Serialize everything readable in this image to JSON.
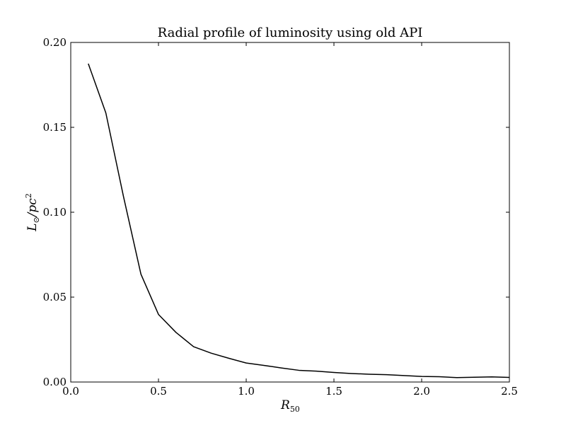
{
  "chart_data": {
    "type": "line",
    "title": "Radial profile of luminosity using old API",
    "xlabel": "R",
    "xlabel_sub": "50",
    "ylabel": "L",
    "ylabel_sub": "⊙",
    "ylabel_rest": "/pc",
    "ylabel_sup": "2",
    "xlim": [
      0.0,
      2.5
    ],
    "ylim": [
      0.0,
      0.2
    ],
    "grid": false,
    "x_ticks": [
      0.0,
      0.5,
      1.0,
      1.5,
      2.0,
      2.5
    ],
    "x_tick_labels": [
      "0.0",
      "0.5",
      "1.0",
      "1.5",
      "2.0",
      "2.5"
    ],
    "y_ticks": [
      0.0,
      0.05,
      0.1,
      0.15,
      0.2
    ],
    "y_tick_labels": [
      "0.00",
      "0.05",
      "0.10",
      "0.15",
      "0.20"
    ],
    "line_color": "#000000",
    "series": [
      {
        "x": [
          0.1,
          0.2,
          0.3,
          0.4,
          0.5,
          0.6,
          0.7,
          0.8,
          0.9,
          1.0,
          1.1,
          1.2,
          1.3,
          1.4,
          1.5,
          1.6,
          1.7,
          1.8,
          1.9,
          2.0,
          2.1,
          2.2,
          2.3,
          2.4,
          2.5
        ],
        "y": [
          0.1875,
          0.1585,
          0.1095,
          0.0635,
          0.0398,
          0.0292,
          0.0208,
          0.017,
          0.014,
          0.0112,
          0.0098,
          0.0083,
          0.0069,
          0.0064,
          0.0056,
          0.005,
          0.0046,
          0.0043,
          0.0038,
          0.0033,
          0.0031,
          0.0026,
          0.0028,
          0.003,
          0.0027
        ]
      }
    ]
  }
}
